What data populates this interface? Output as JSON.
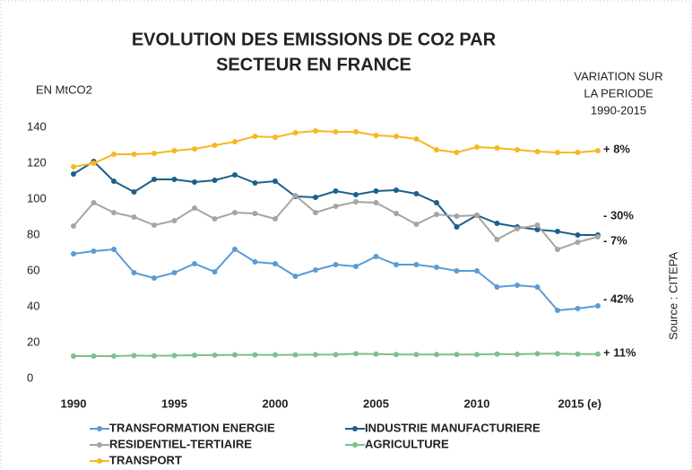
{
  "chart_data": {
    "type": "line",
    "title": [
      "EVOLUTION DES EMISSIONS DE CO2 PAR",
      "SECTEUR EN FRANCE"
    ],
    "y_axis_label": "EN MtCO2",
    "variation_title": [
      "VARIATION SUR",
      "LA PERIODE",
      "1990-2015"
    ],
    "variations": [
      "+ 8%",
      "- 30%",
      "- 7%",
      "- 42%",
      "+ 11%"
    ],
    "source": "Source : CITEPA",
    "x": [
      1990,
      1991,
      1992,
      1993,
      1994,
      1995,
      1996,
      1997,
      1998,
      1999,
      2000,
      2001,
      2002,
      2003,
      2004,
      2005,
      2006,
      2007,
      2008,
      2009,
      2010,
      2011,
      2012,
      2013,
      2014,
      2015,
      2016
    ],
    "xlim": [
      1990,
      2016
    ],
    "xticks": [
      1990,
      1995,
      2000,
      2005,
      2010,
      {
        "value": 2015,
        "label": "2015 (e)"
      }
    ],
    "ylim": [
      0,
      140
    ],
    "yticks": [
      0,
      20,
      40,
      60,
      80,
      100,
      120,
      140
    ],
    "grid": false,
    "series": [
      {
        "name": "TRANSFORMATION ENERGIE",
        "color": "#5b9bd5",
        "values": [
          69.5,
          71,
          72,
          59,
          56,
          59,
          64,
          59.5,
          72,
          65,
          64,
          57,
          60.5,
          63.5,
          62.5,
          68,
          63.5,
          63.5,
          62,
          60,
          60,
          51,
          52,
          51,
          38,
          39,
          40.5
        ]
      },
      {
        "name": "INDUSTRIE MANUFACTURIERE",
        "color": "#1d5f8a",
        "values": [
          114,
          121,
          110,
          104,
          111,
          111,
          109.5,
          110.5,
          113.5,
          109,
          110,
          101.5,
          101,
          104.5,
          102.5,
          104.5,
          105,
          103,
          98,
          84.5,
          91,
          86.5,
          84.5,
          83,
          82,
          80,
          80
        ]
      },
      {
        "name": "RESIDENTIEL-TERTIAIRE",
        "color": "#a5a5a5",
        "values": [
          85,
          98,
          92.5,
          90,
          85.5,
          88,
          95,
          89,
          92.5,
          92,
          89,
          102,
          92.5,
          96,
          98.5,
          98,
          92,
          86,
          91.5,
          90.5,
          91,
          77.5,
          83.5,
          85.5,
          72,
          76,
          79
        ]
      },
      {
        "name": "AGRICULTURE",
        "color": "#7dc08a",
        "values": [
          12.5,
          12.5,
          12.5,
          12.8,
          12.6,
          12.8,
          13,
          13,
          13.2,
          13.2,
          13.2,
          13.2,
          13.3,
          13.3,
          13.8,
          13.6,
          13.4,
          13.4,
          13.4,
          13.4,
          13.4,
          13.6,
          13.5,
          13.8,
          13.8,
          13.6,
          13.6
        ]
      },
      {
        "name": "TRANSPORT",
        "color": "#f6b81e",
        "values": [
          118,
          120,
          125,
          125,
          125.5,
          127,
          128,
          130,
          132,
          135,
          134.5,
          137,
          138,
          137.5,
          137.5,
          135.5,
          135,
          133.5,
          127.5,
          126,
          129,
          128.5,
          127.5,
          126.5,
          126,
          126,
          127
        ]
      }
    ]
  }
}
